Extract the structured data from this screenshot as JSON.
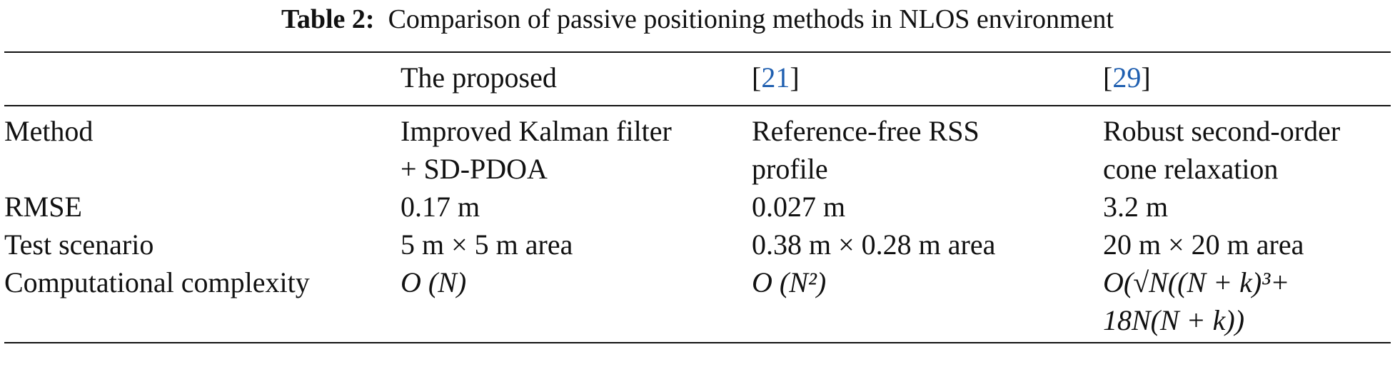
{
  "caption": {
    "label": "Table 2:",
    "text": "Comparison of passive positioning methods in NLOS environment"
  },
  "table": {
    "header": [
      [],
      [
        "The proposed"
      ],
      [
        "[",
        "21",
        "]"
      ],
      [
        "[",
        "29",
        "]"
      ]
    ],
    "rows": [
      [
        "Method",
        "Improved Kalman filter\n+ SD-PDOA",
        "Reference-free RSS\nprofile",
        "Robust second-order\ncone relaxation"
      ],
      [
        "RMSE",
        "0.17 m",
        "0.027 m",
        "3.2 m"
      ],
      [
        "Test scenario",
        "5 m × 5 m area",
        "0.38 m × 0.28 m area",
        "20 m × 20 m area"
      ],
      [
        "Computational complexity",
        "O (N)",
        "O (N²)",
        "O(√N((N + k)³+\n18N(N + k))"
      ]
    ]
  }
}
